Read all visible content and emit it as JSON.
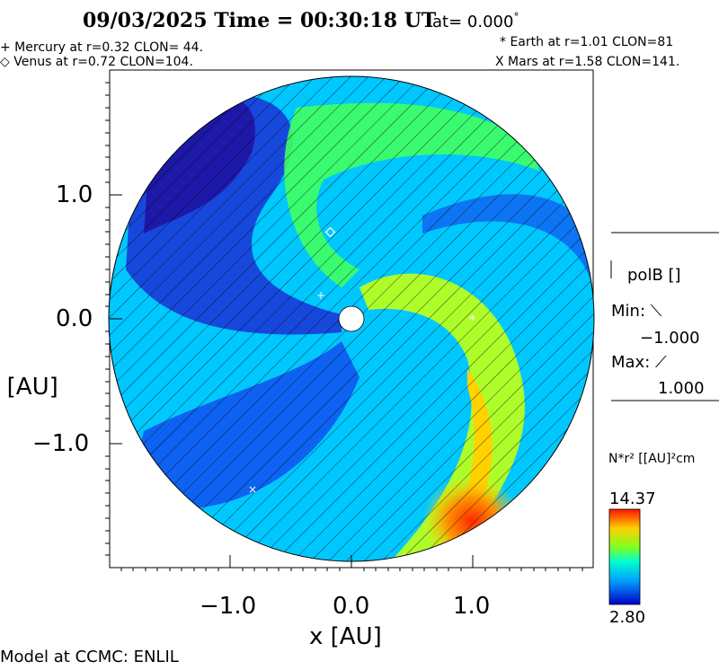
{
  "header": {
    "title": "09/03/2025 Time = 00:30:18 UT",
    "lat_label": "lat= 0.000",
    "lat_degree": "°"
  },
  "planets": {
    "mercury": "+ Mercury at r=0.32 CLON= 44.",
    "venus": "◇ Venus at r=0.72 CLON=104.",
    "earth": "* Earth at r=1.01 CLON=81",
    "mars": "X Mars at r=1.58 CLON=141."
  },
  "axes": {
    "x_label": "x [AU]",
    "y_label": "y [AU]",
    "x_ticks": [
      "−1.0",
      "0.0",
      "1.0"
    ],
    "y_ticks": [
      "1.0",
      "0.0",
      "−1.0"
    ]
  },
  "polarity": {
    "label": "polB []",
    "min_label": "Min: ⟍",
    "min_value": "−1.000",
    "max_label": "Max: ⟋",
    "max_value": "1.000"
  },
  "colorbar": {
    "label": "N*r² [[AU]²cm",
    "max": "14.37",
    "min": "2.80"
  },
  "footer": {
    "credit": "Model at CCMC: ENLIL"
  },
  "colors": {
    "low": "#1414a0",
    "mid": "#00e6ff",
    "high": "#e62800"
  }
}
